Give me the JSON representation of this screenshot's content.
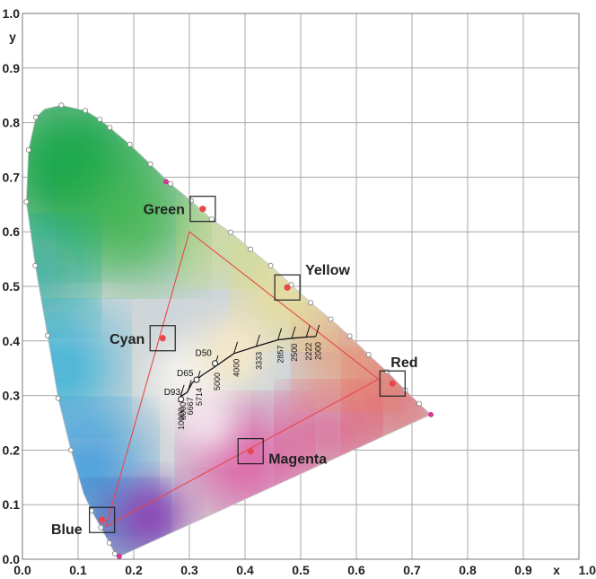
{
  "chart_data": {
    "type": "scatter",
    "xlabel": "x",
    "ylabel": "y",
    "xlim": [
      0,
      1
    ],
    "ylim": [
      0,
      1
    ],
    "grid": true,
    "x_ticks": [
      "0.0",
      "0.1",
      "0.2",
      "0.3",
      "0.4",
      "0.5",
      "0.6",
      "0.7",
      "0.8",
      "0.9",
      "1.0"
    ],
    "y_ticks": [
      "0.0",
      "0.1",
      "0.2",
      "0.3",
      "0.4",
      "0.5",
      "0.6",
      "0.7",
      "0.8",
      "0.9",
      "1.0"
    ],
    "spectral_locus": [
      [
        0.174,
        0.005
      ],
      [
        0.17,
        0.006
      ],
      [
        0.165,
        0.012
      ],
      [
        0.156,
        0.03
      ],
      [
        0.141,
        0.058
      ],
      [
        0.124,
        0.089
      ],
      [
        0.11,
        0.12
      ],
      [
        0.087,
        0.2
      ],
      [
        0.064,
        0.295
      ],
      [
        0.045,
        0.41
      ],
      [
        0.023,
        0.538
      ],
      [
        0.007,
        0.655
      ],
      [
        0.011,
        0.75
      ],
      [
        0.024,
        0.81
      ],
      [
        0.04,
        0.825
      ],
      [
        0.07,
        0.832
      ],
      [
        0.113,
        0.822
      ],
      [
        0.139,
        0.806
      ],
      [
        0.157,
        0.791
      ],
      [
        0.193,
        0.76
      ],
      [
        0.23,
        0.724
      ],
      [
        0.266,
        0.688
      ],
      [
        0.303,
        0.657
      ],
      [
        0.34,
        0.623
      ],
      [
        0.374,
        0.599
      ],
      [
        0.41,
        0.568
      ],
      [
        0.446,
        0.538
      ],
      [
        0.483,
        0.503
      ],
      [
        0.518,
        0.47
      ],
      [
        0.554,
        0.44
      ],
      [
        0.588,
        0.409
      ],
      [
        0.622,
        0.375
      ],
      [
        0.655,
        0.344
      ],
      [
        0.688,
        0.31
      ],
      [
        0.713,
        0.285
      ],
      [
        0.734,
        0.265
      ]
    ],
    "locus_markers": [
      [
        0.166,
        0.01
      ],
      [
        0.156,
        0.03
      ],
      [
        0.141,
        0.058
      ],
      [
        0.124,
        0.089
      ],
      [
        0.087,
        0.2
      ],
      [
        0.064,
        0.295
      ],
      [
        0.045,
        0.41
      ],
      [
        0.023,
        0.538
      ],
      [
        0.007,
        0.655
      ],
      [
        0.011,
        0.75
      ],
      [
        0.024,
        0.81
      ],
      [
        0.07,
        0.832
      ],
      [
        0.113,
        0.822
      ],
      [
        0.139,
        0.806
      ],
      [
        0.157,
        0.791
      ],
      [
        0.193,
        0.76
      ],
      [
        0.23,
        0.724
      ],
      [
        0.266,
        0.688
      ],
      [
        0.303,
        0.657
      ],
      [
        0.34,
        0.623
      ],
      [
        0.374,
        0.599
      ],
      [
        0.41,
        0.568
      ],
      [
        0.446,
        0.538
      ],
      [
        0.483,
        0.503
      ],
      [
        0.518,
        0.47
      ],
      [
        0.554,
        0.44
      ],
      [
        0.588,
        0.409
      ],
      [
        0.622,
        0.375
      ],
      [
        0.655,
        0.344
      ],
      [
        0.688,
        0.31
      ],
      [
        0.713,
        0.285
      ]
    ],
    "locus_endpoints": [
      [
        0.174,
        0.005
      ],
      [
        0.734,
        0.265
      ],
      [
        0.258,
        0.692
      ]
    ],
    "gamut_triangle": [
      [
        0.64,
        0.33
      ],
      [
        0.3,
        0.6
      ],
      [
        0.15,
        0.06
      ]
    ],
    "primaries": [
      {
        "name": "Red",
        "x": 0.665,
        "y": 0.322
      },
      {
        "name": "Green",
        "x": 0.324,
        "y": 0.642
      },
      {
        "name": "Blue",
        "x": 0.143,
        "y": 0.072
      },
      {
        "name": "Cyan",
        "x": 0.252,
        "y": 0.405
      },
      {
        "name": "Yellow",
        "x": 0.476,
        "y": 0.498
      },
      {
        "name": "Magenta",
        "x": 0.41,
        "y": 0.198
      }
    ],
    "planckian_locus": [
      [
        0.281,
        0.288
      ],
      [
        0.283,
        0.297
      ],
      [
        0.296,
        0.306
      ],
      [
        0.305,
        0.323
      ],
      [
        0.324,
        0.338
      ],
      [
        0.345,
        0.352
      ],
      [
        0.38,
        0.377
      ],
      [
        0.42,
        0.39
      ],
      [
        0.459,
        0.402
      ],
      [
        0.484,
        0.405
      ],
      [
        0.51,
        0.407
      ],
      [
        0.527,
        0.408
      ]
    ],
    "cct_labels": [
      "10000",
      "8000",
      "6667",
      "5714",
      "5000",
      "4000",
      "3333",
      "2857",
      "2500",
      "2222",
      "2000"
    ],
    "cct_ticks": [
      [
        0.281,
        0.288
      ],
      [
        0.284,
        0.298
      ],
      [
        0.297,
        0.307
      ],
      [
        0.313,
        0.324
      ],
      [
        0.345,
        0.352
      ],
      [
        0.38,
        0.377
      ],
      [
        0.42,
        0.39
      ],
      [
        0.459,
        0.402
      ],
      [
        0.484,
        0.405
      ],
      [
        0.51,
        0.407
      ],
      [
        0.527,
        0.408
      ]
    ],
    "white_points": [
      {
        "name": "D93",
        "x": 0.285,
        "y": 0.293
      },
      {
        "name": "D65",
        "x": 0.313,
        "y": 0.329
      },
      {
        "name": "D50",
        "x": 0.346,
        "y": 0.359
      }
    ],
    "colors": {
      "accent": "#e8474c",
      "locus_marker": "#ffffff",
      "grid": "#a8a8a8"
    }
  }
}
